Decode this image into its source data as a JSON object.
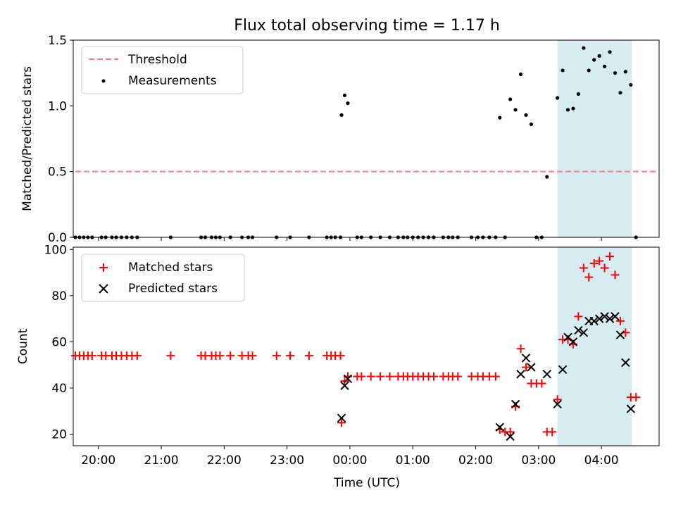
{
  "chart_data": [
    {
      "type": "scatter",
      "title": "Flux total observing time = 1.17 h",
      "xlabel": "",
      "ylabel": "Matched/Predicted stars",
      "xlim": [
        "19:36",
        "04:55"
      ],
      "ylim": [
        0,
        1.5
      ],
      "yticks": [
        "0.0",
        "0.5",
        "1.0",
        "1.5"
      ],
      "grid": false,
      "legend_placement": "top-left",
      "shaded_region": {
        "x_start": "03:18",
        "x_end": "04:29",
        "color": "#add8e6"
      },
      "series": [
        {
          "name": "Threshold",
          "kind": "dashed-line",
          "color": "#ff7f7f",
          "points": [
            [
              "19:38",
              0.5
            ],
            [
              "04:53",
              0.5
            ]
          ]
        },
        {
          "name": "Measurements",
          "kind": "dots",
          "color": "#000000",
          "points": [
            [
              "19:38",
              0
            ],
            [
              "19:42",
              0
            ],
            [
              "19:46",
              0
            ],
            [
              "19:50",
              0
            ],
            [
              "19:54",
              0
            ],
            [
              "20:03",
              0
            ],
            [
              "20:07",
              0
            ],
            [
              "20:13",
              0
            ],
            [
              "20:17",
              0
            ],
            [
              "20:22",
              0
            ],
            [
              "20:27",
              0
            ],
            [
              "20:32",
              0
            ],
            [
              "20:37",
              0
            ],
            [
              "21:09",
              0
            ],
            [
              "21:38",
              0
            ],
            [
              "21:42",
              0
            ],
            [
              "21:48",
              0
            ],
            [
              "21:52",
              0
            ],
            [
              "21:56",
              0
            ],
            [
              "22:06",
              0
            ],
            [
              "22:17",
              0
            ],
            [
              "22:23",
              0
            ],
            [
              "22:27",
              0
            ],
            [
              "22:50",
              0
            ],
            [
              "23:03",
              0
            ],
            [
              "23:21",
              0
            ],
            [
              "23:38",
              0
            ],
            [
              "23:42",
              0
            ],
            [
              "23:46",
              0
            ],
            [
              "23:51",
              0
            ],
            [
              "23:52",
              0.93
            ],
            [
              "23:55",
              1.08
            ],
            [
              "23:58",
              1.02
            ],
            [
              "00:07",
              0
            ],
            [
              "00:11",
              0
            ],
            [
              "00:20",
              0
            ],
            [
              "00:29",
              0
            ],
            [
              "00:38",
              0
            ],
            [
              "00:46",
              0
            ],
            [
              "00:51",
              0
            ],
            [
              "00:55",
              0
            ],
            [
              "01:00",
              0
            ],
            [
              "01:05",
              0
            ],
            [
              "01:10",
              0
            ],
            [
              "01:15",
              0
            ],
            [
              "01:20",
              0
            ],
            [
              "01:29",
              0
            ],
            [
              "01:34",
              0
            ],
            [
              "01:38",
              0
            ],
            [
              "01:43",
              0
            ],
            [
              "01:56",
              0
            ],
            [
              "02:02",
              0
            ],
            [
              "02:07",
              0
            ],
            [
              "02:13",
              0
            ],
            [
              "02:19",
              0
            ],
            [
              "02:23",
              0.91
            ],
            [
              "02:28",
              0
            ],
            [
              "02:33",
              1.05
            ],
            [
              "02:38",
              0.97
            ],
            [
              "02:43",
              1.24
            ],
            [
              "02:48",
              0.93
            ],
            [
              "02:53",
              0.86
            ],
            [
              "02:58",
              0
            ],
            [
              "03:03",
              0
            ],
            [
              "03:08",
              0.46
            ],
            [
              "03:18",
              1.06
            ],
            [
              "03:23",
              1.27
            ],
            [
              "03:28",
              0.97
            ],
            [
              "03:33",
              0.98
            ],
            [
              "03:38",
              1.09
            ],
            [
              "03:43",
              1.44
            ],
            [
              "03:48",
              1.27
            ],
            [
              "03:53",
              1.35
            ],
            [
              "03:58",
              1.38
            ],
            [
              "04:03",
              1.3
            ],
            [
              "04:08",
              1.41
            ],
            [
              "04:13",
              1.25
            ],
            [
              "04:18",
              1.1
            ],
            [
              "04:23",
              1.26
            ],
            [
              "04:28",
              1.16
            ],
            [
              "04:33",
              0
            ]
          ]
        }
      ]
    },
    {
      "type": "scatter",
      "title": "",
      "xlabel": "Time (UTC)",
      "ylabel": "Count",
      "xlim": [
        "19:36",
        "04:55"
      ],
      "ylim": [
        15,
        101
      ],
      "xticks": [
        "20:00",
        "21:00",
        "22:00",
        "23:00",
        "00:00",
        "01:00",
        "02:00",
        "03:00",
        "04:00"
      ],
      "yticks": [
        "20",
        "40",
        "60",
        "80",
        "100"
      ],
      "grid": false,
      "legend_placement": "top-left",
      "shaded_region": {
        "x_start": "03:18",
        "x_end": "04:29",
        "color": "#add8e6"
      },
      "series": [
        {
          "name": "Matched stars",
          "kind": "plus",
          "color": "#ff0000",
          "points": [
            [
              "19:38",
              54
            ],
            [
              "19:42",
              54
            ],
            [
              "19:46",
              54
            ],
            [
              "19:50",
              54
            ],
            [
              "19:54",
              54
            ],
            [
              "20:03",
              54
            ],
            [
              "20:07",
              54
            ],
            [
              "20:13",
              54
            ],
            [
              "20:17",
              54
            ],
            [
              "20:22",
              54
            ],
            [
              "20:27",
              54
            ],
            [
              "20:32",
              54
            ],
            [
              "20:37",
              54
            ],
            [
              "21:09",
              54
            ],
            [
              "21:38",
              54
            ],
            [
              "21:42",
              54
            ],
            [
              "21:48",
              54
            ],
            [
              "21:52",
              54
            ],
            [
              "21:56",
              54
            ],
            [
              "22:06",
              54
            ],
            [
              "22:17",
              54
            ],
            [
              "22:23",
              54
            ],
            [
              "22:27",
              54
            ],
            [
              "22:50",
              54
            ],
            [
              "23:03",
              54
            ],
            [
              "23:21",
              54
            ],
            [
              "23:38",
              54
            ],
            [
              "23:42",
              54
            ],
            [
              "23:46",
              54
            ],
            [
              "23:51",
              54
            ],
            [
              "23:52",
              25
            ],
            [
              "23:55",
              43
            ],
            [
              "23:58",
              45
            ],
            [
              "00:07",
              45
            ],
            [
              "00:11",
              45
            ],
            [
              "00:20",
              45
            ],
            [
              "00:29",
              45
            ],
            [
              "00:38",
              45
            ],
            [
              "00:46",
              45
            ],
            [
              "00:51",
              45
            ],
            [
              "00:55",
              45
            ],
            [
              "01:00",
              45
            ],
            [
              "01:05",
              45
            ],
            [
              "01:10",
              45
            ],
            [
              "01:15",
              45
            ],
            [
              "01:20",
              45
            ],
            [
              "01:29",
              45
            ],
            [
              "01:34",
              45
            ],
            [
              "01:38",
              45
            ],
            [
              "01:43",
              45
            ],
            [
              "01:56",
              45
            ],
            [
              "02:02",
              45
            ],
            [
              "02:07",
              45
            ],
            [
              "02:13",
              45
            ],
            [
              "02:19",
              45
            ],
            [
              "02:23",
              22
            ],
            [
              "02:28",
              21
            ],
            [
              "02:33",
              21
            ],
            [
              "02:38",
              32
            ],
            [
              "02:43",
              57
            ],
            [
              "02:48",
              49
            ],
            [
              "02:53",
              42
            ],
            [
              "02:58",
              42
            ],
            [
              "03:03",
              42
            ],
            [
              "03:08",
              21
            ],
            [
              "03:13",
              21
            ],
            [
              "03:18",
              35
            ],
            [
              "03:23",
              61
            ],
            [
              "03:28",
              61
            ],
            [
              "03:33",
              59
            ],
            [
              "03:38",
              71
            ],
            [
              "03:43",
              92
            ],
            [
              "03:48",
              88
            ],
            [
              "03:53",
              94
            ],
            [
              "03:58",
              95
            ],
            [
              "04:03",
              92
            ],
            [
              "04:08",
              97
            ],
            [
              "04:13",
              89
            ],
            [
              "04:18",
              69
            ],
            [
              "04:23",
              64
            ],
            [
              "04:28",
              36
            ],
            [
              "04:33",
              36
            ]
          ]
        },
        {
          "name": "Predicted stars",
          "kind": "x",
          "color": "#000000",
          "points": [
            [
              "23:52",
              27
            ],
            [
              "23:55",
              41
            ],
            [
              "23:58",
              44
            ],
            [
              "02:23",
              23
            ],
            [
              "02:33",
              19
            ],
            [
              "02:38",
              33
            ],
            [
              "02:43",
              46
            ],
            [
              "02:48",
              53
            ],
            [
              "02:53",
              49
            ],
            [
              "03:08",
              46
            ],
            [
              "03:18",
              33
            ],
            [
              "03:23",
              48
            ],
            [
              "03:28",
              62
            ],
            [
              "03:33",
              60
            ],
            [
              "03:38",
              65
            ],
            [
              "03:43",
              64
            ],
            [
              "03:48",
              69
            ],
            [
              "03:53",
              69
            ],
            [
              "03:58",
              70
            ],
            [
              "04:03",
              71
            ],
            [
              "04:08",
              70
            ],
            [
              "04:13",
              71
            ],
            [
              "04:18",
              63
            ],
            [
              "04:23",
              51
            ],
            [
              "04:28",
              31
            ]
          ]
        }
      ]
    }
  ]
}
